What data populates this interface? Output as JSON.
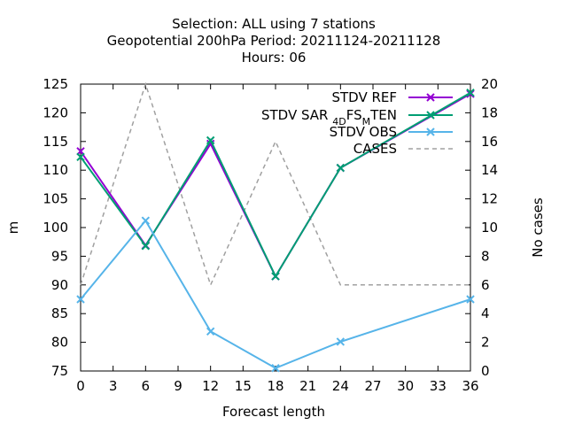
{
  "chart_data": {
    "type": "line",
    "title": [
      "Selection: ALL using     7 stations",
      "Geopotential 200hPa   Period: 20211124-20211128",
      "Hours:  06"
    ],
    "xlabel": "Forecast length",
    "ylabel": "m",
    "y2label": "No cases",
    "xlim": [
      0,
      36
    ],
    "ylim": [
      75,
      125
    ],
    "y2lim": [
      0,
      20
    ],
    "xticks": [
      "0",
      "3",
      "6",
      "9",
      "12",
      "15",
      "18",
      "21",
      "24",
      "27",
      "30",
      "33",
      "36"
    ],
    "yticks": [
      "75",
      "80",
      "85",
      "90",
      "95",
      "100",
      "105",
      "110",
      "115",
      "120",
      "125"
    ],
    "y2ticks": [
      "0",
      "2",
      "4",
      "6",
      "8",
      "10",
      "12",
      "14",
      "16",
      "18",
      "20"
    ],
    "legend_position": "top-right",
    "x": [
      0,
      6,
      12,
      18,
      24,
      36
    ],
    "series": [
      {
        "name": "STDV REF",
        "axis": "y",
        "color": "#9400d3",
        "marker": "x",
        "dash": false,
        "values": [
          113.3,
          96.9,
          114.6,
          91.5,
          110.4,
          123.3
        ]
      },
      {
        "name_parts": [
          "STDV SAR",
          "4D",
          "FS",
          "M",
          "TEN"
        ],
        "axis": "y",
        "color": "#009e73",
        "marker": "x",
        "dash": false,
        "values": [
          112.3,
          96.8,
          115.2,
          91.5,
          110.4,
          123.5
        ]
      },
      {
        "name": "STDV OBS",
        "axis": "y",
        "color": "#56b4e9",
        "marker": "x",
        "dash": false,
        "values": [
          87.5,
          101.2,
          81.9,
          75.5,
          80.1,
          87.5
        ]
      },
      {
        "name": "CASES",
        "axis": "y2",
        "color": "#a0a0a0",
        "marker": "none",
        "dash": true,
        "values": [
          6,
          20,
          6,
          16,
          6,
          6
        ]
      }
    ]
  }
}
